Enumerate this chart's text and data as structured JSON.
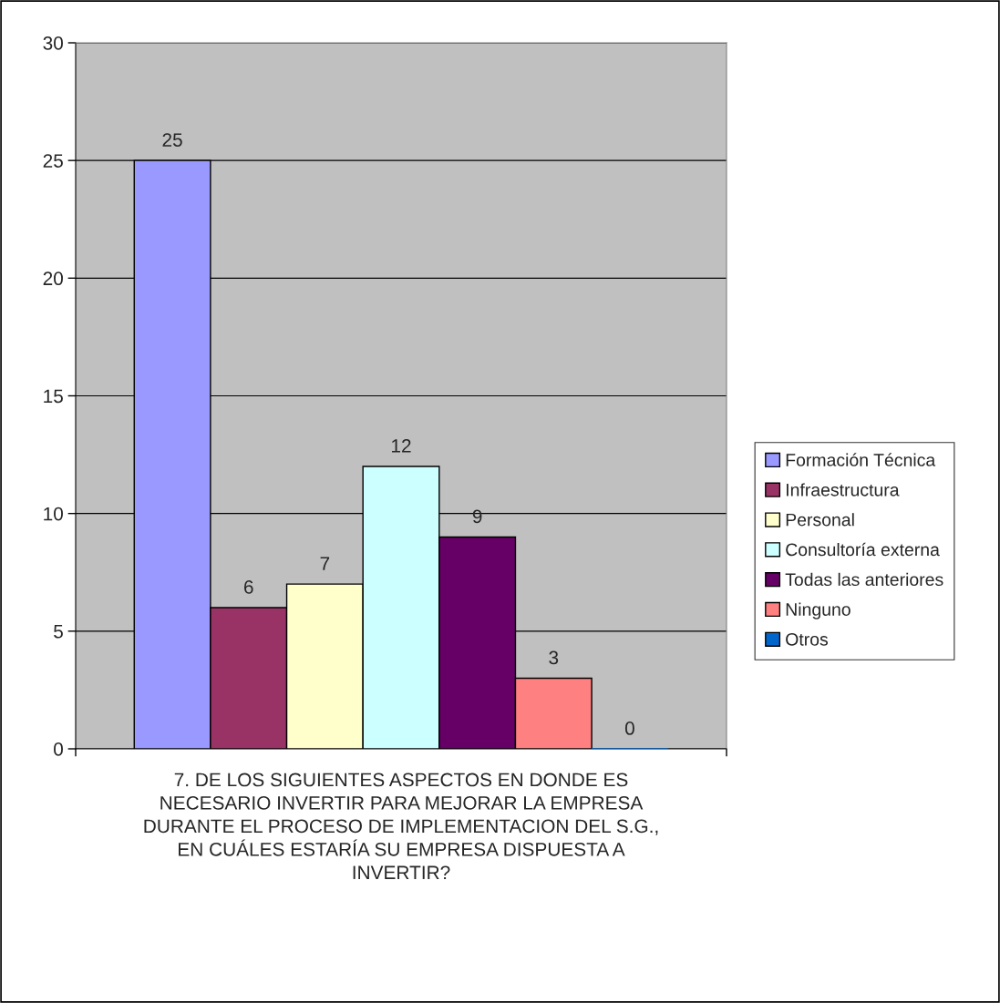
{
  "chart_data": {
    "type": "bar",
    "xlabel": "7. DE LOS SIGUIENTES ASPECTOS EN DONDE ES NECESARIO INVERTIR PARA MEJORAR LA EMPRESA DURANTE EL PROCESO DE IMPLEMENTACION DEL S.G., EN CUÁLES ESTARÍA SU EMPRESA DISPUESTA A INVERTIR?",
    "categories": [
      null
    ],
    "series": [
      {
        "name": "Formación Técnica",
        "color": "#9999ff",
        "values": [
          25
        ]
      },
      {
        "name": "Infraestructura",
        "color": "#993366",
        "values": [
          6
        ]
      },
      {
        "name": "Personal",
        "color": "#ffffcc",
        "values": [
          7
        ]
      },
      {
        "name": "Consultoría externa",
        "color": "#ccffff",
        "values": [
          12
        ]
      },
      {
        "name": "Todas las anteriores",
        "color": "#660066",
        "values": [
          9
        ]
      },
      {
        "name": "Ninguno",
        "color": "#ff8080",
        "values": [
          3
        ]
      },
      {
        "name": "Otros",
        "color": "#0066cc",
        "values": [
          0
        ]
      }
    ],
    "ylim": [
      0,
      30
    ],
    "yticks": [
      0,
      5,
      10,
      15,
      20,
      25,
      30
    ],
    "grid": "y",
    "legend": "right",
    "data_labels": true
  }
}
